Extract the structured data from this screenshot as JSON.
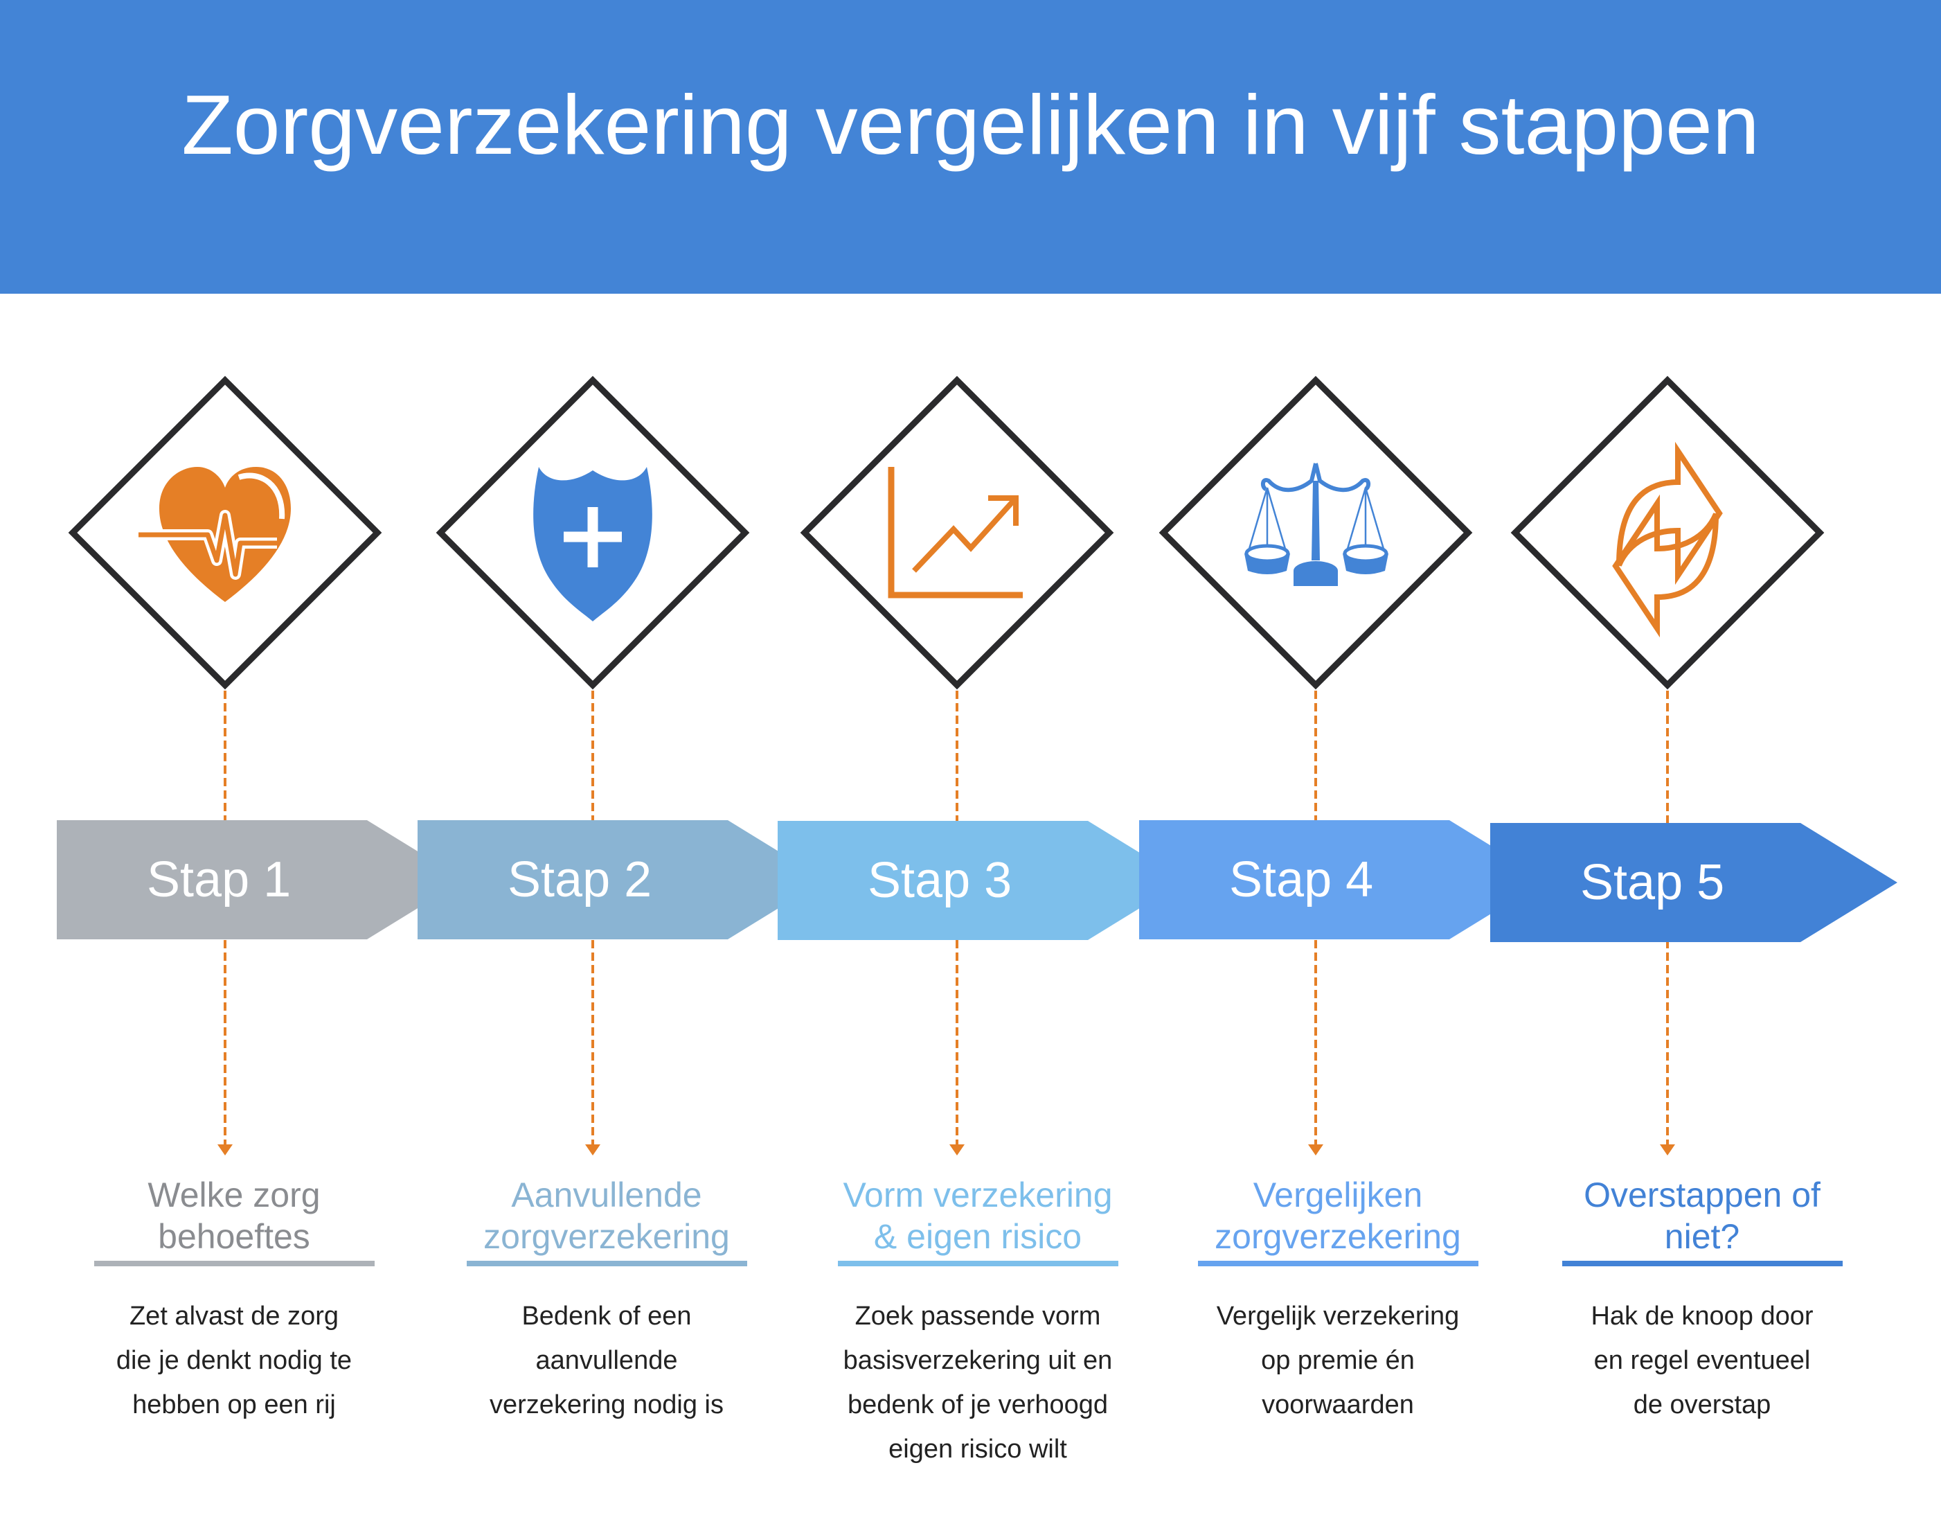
{
  "title": "Zorgverzekering vergelijken in vijf stappen",
  "colors": {
    "header": "#4384d6",
    "accent_orange": "#e57f26",
    "icon_blue": "#4384d6",
    "diamond_stroke": "#2a2a2c"
  },
  "steps": [
    {
      "label": "Stap 1",
      "icon": "heart-pulse-icon",
      "color": "#adb2b8",
      "text_color": "#8a8c90",
      "heading": [
        "Welke zorg",
        "behoeftes"
      ],
      "description": [
        "Zet alvast de zorg",
        "die je denkt nodig te",
        "hebben op een rij"
      ]
    },
    {
      "label": "Stap 2",
      "icon": "shield-plus-icon",
      "color": "#8ab4d3",
      "text_color": "#8ab4d3",
      "heading": [
        "Aanvullende",
        "zorgverzekering"
      ],
      "description": [
        "Bedenk of een",
        "aanvullende",
        "verzekering nodig is"
      ]
    },
    {
      "label": "Stap 3",
      "icon": "chart-trend-icon",
      "color": "#7dbfeb",
      "text_color": "#7dbfeb",
      "heading": [
        "Vorm verzekering",
        "& eigen risico"
      ],
      "description": [
        "Zoek passende vorm",
        "basisverzekering uit en",
        "bedenk of je verhoogd",
        "eigen risico wilt"
      ]
    },
    {
      "label": "Stap 4",
      "icon": "scales-icon",
      "color": "#66a3ef",
      "text_color": "#66a3ef",
      "heading": [
        "Vergelijken",
        "zorgverzekering"
      ],
      "description": [
        "Vergelijk verzekering",
        "op premie én",
        "voorwaarden"
      ]
    },
    {
      "label": "Stap 5",
      "icon": "switch-arrows-icon",
      "color": "#4282d6",
      "text_color": "#4282d6",
      "heading": [
        "Overstappen of",
        "niet?"
      ],
      "description": [
        "Hak de knoop door",
        "en regel eventueel",
        "de overstap"
      ]
    }
  ]
}
